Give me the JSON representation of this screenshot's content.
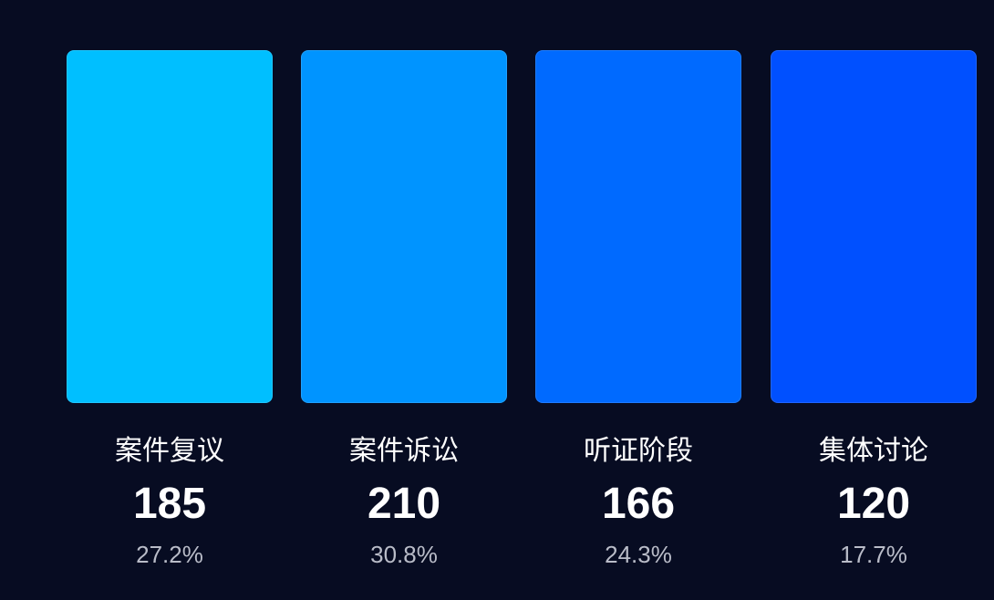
{
  "chart_data": {
    "type": "bar",
    "categories": [
      "案件复议",
      "案件诉讼",
      "听证阶段",
      "集体讨论"
    ],
    "values": [
      185,
      210,
      166,
      120
    ],
    "percentages": [
      "27.2%",
      "30.8%",
      "24.3%",
      "17.7%"
    ],
    "colors": [
      "#00bfff",
      "#0094ff",
      "#006aff",
      "#0050ff"
    ],
    "title": "",
    "xlabel": "",
    "ylabel": "",
    "grid": false,
    "legend": "none"
  }
}
